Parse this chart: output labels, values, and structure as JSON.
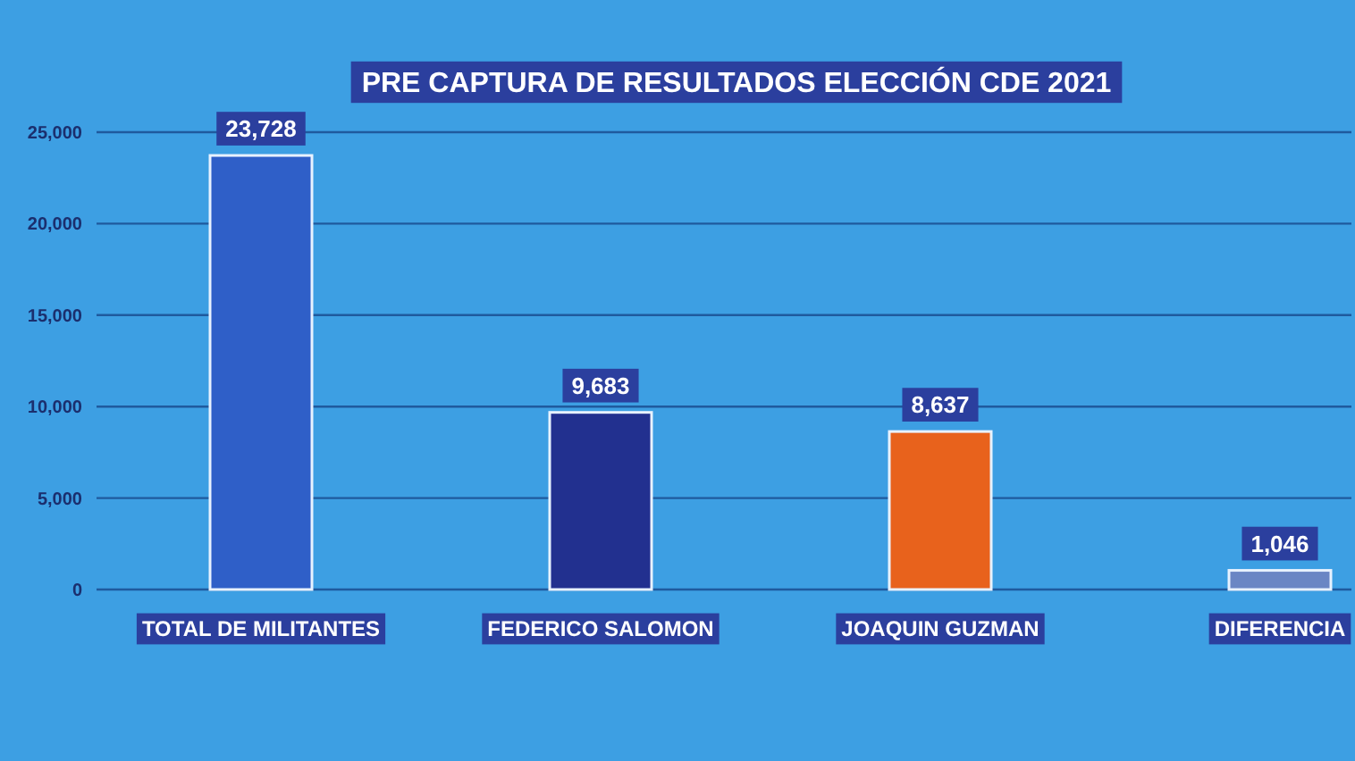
{
  "chart_data": {
    "type": "bar",
    "title": "PRE CAPTURA DE RESULTADOS ELECCIÓN CDE 2021",
    "categories": [
      "TOTAL DE MILITANTES",
      "FEDERICO SALOMON",
      "JOAQUIN GUZMAN",
      "DIFERENCIA"
    ],
    "values": [
      23728,
      9683,
      8637,
      1046
    ],
    "value_labels": [
      "23,728",
      "9,683",
      "8,637",
      "1,046"
    ],
    "colors": [
      "#2f5fc8",
      "#22308f",
      "#e8621c",
      "#6a86c4"
    ],
    "ylim": [
      0,
      25000
    ],
    "yticks": [
      {
        "value": 0,
        "label": "0"
      },
      {
        "value": 5000,
        "label": "5,000"
      },
      {
        "value": 10000,
        "label": "10,000"
      },
      {
        "value": 15000,
        "label": "15,000"
      },
      {
        "value": 20000,
        "label": "20,000"
      },
      {
        "value": 25000,
        "label": "25,000"
      }
    ],
    "grid": "y"
  }
}
